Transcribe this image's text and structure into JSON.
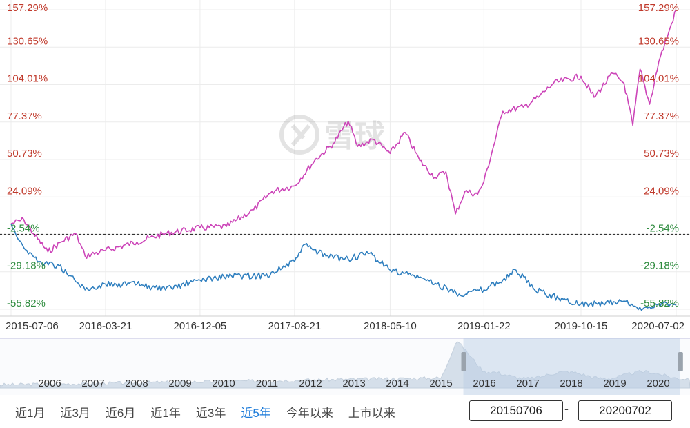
{
  "chart_data": {
    "type": "line",
    "y_ticks": [
      "157.29%",
      "130.65%",
      "104.01%",
      "77.37%",
      "50.73%",
      "24.09%",
      "-2.54%",
      "-29.18%",
      "-55.82%"
    ],
    "y_values": [
      157.29,
      130.65,
      104.01,
      77.37,
      50.73,
      24.09,
      -2.54,
      -29.18,
      -55.82
    ],
    "ylim": [
      -55.82,
      157.29
    ],
    "x_ticks": [
      "2015-07-06",
      "2016-03-21",
      "2016-12-05",
      "2017-08-21",
      "2018-05-10",
      "2019-01-22",
      "2019-10-15",
      "2020-07-02"
    ],
    "baseline": -2.54,
    "series": [
      {
        "color": "#cc44b8",
        "points": [
          [
            "2015-07-06",
            5
          ],
          [
            "2015-08-10",
            8
          ],
          [
            "2015-09-05",
            -2
          ],
          [
            "2015-10-15",
            -15
          ],
          [
            "2015-11-20",
            -8
          ],
          [
            "2015-12-30",
            -2
          ],
          [
            "2016-01-25",
            -18
          ],
          [
            "2016-03-21",
            -14
          ],
          [
            "2016-06-15",
            -8
          ],
          [
            "2016-09-01",
            -2
          ],
          [
            "2016-12-05",
            2
          ],
          [
            "2017-02-15",
            3
          ],
          [
            "2017-05-01",
            15
          ],
          [
            "2017-06-20",
            28
          ],
          [
            "2017-08-21",
            32
          ],
          [
            "2017-10-15",
            50
          ],
          [
            "2017-12-05",
            62
          ],
          [
            "2018-01-15",
            78
          ],
          [
            "2018-02-10",
            60
          ],
          [
            "2018-03-25",
            65
          ],
          [
            "2018-05-10",
            55
          ],
          [
            "2018-06-20",
            70
          ],
          [
            "2018-07-30",
            50
          ],
          [
            "2018-09-10",
            38
          ],
          [
            "2018-10-10",
            42
          ],
          [
            "2018-11-05",
            12
          ],
          [
            "2018-12-01",
            28
          ],
          [
            "2019-01-05",
            26
          ],
          [
            "2019-01-22",
            35
          ],
          [
            "2019-03-15",
            85
          ],
          [
            "2019-05-10",
            88
          ],
          [
            "2019-06-20",
            95
          ],
          [
            "2019-08-01",
            105
          ],
          [
            "2019-10-15",
            110
          ],
          [
            "2019-11-20",
            95
          ],
          [
            "2020-01-10",
            112
          ],
          [
            "2020-02-10",
            105
          ],
          [
            "2020-03-05",
            75
          ],
          [
            "2020-03-25",
            115
          ],
          [
            "2020-04-20",
            90
          ],
          [
            "2020-05-15",
            120
          ],
          [
            "2020-06-10",
            140
          ],
          [
            "2020-07-02",
            157.29
          ]
        ]
      },
      {
        "color": "#2f7fbf",
        "points": [
          [
            "2015-07-06",
            5
          ],
          [
            "2015-08-10",
            -12
          ],
          [
            "2015-09-20",
            -22
          ],
          [
            "2015-11-15",
            -25
          ],
          [
            "2016-01-25",
            -42
          ],
          [
            "2016-03-21",
            -38
          ],
          [
            "2016-06-15",
            -38
          ],
          [
            "2016-09-01",
            -42
          ],
          [
            "2016-12-05",
            -35
          ],
          [
            "2017-03-01",
            -32
          ],
          [
            "2017-06-01",
            -32
          ],
          [
            "2017-08-21",
            -22
          ],
          [
            "2017-09-15",
            -10
          ],
          [
            "2017-11-15",
            -18
          ],
          [
            "2018-01-15",
            -20
          ],
          [
            "2018-03-15",
            -16
          ],
          [
            "2018-05-10",
            -28
          ],
          [
            "2018-07-15",
            -32
          ],
          [
            "2018-09-15",
            -38
          ],
          [
            "2018-11-15",
            -45
          ],
          [
            "2019-01-22",
            -42
          ],
          [
            "2019-03-15",
            -35
          ],
          [
            "2019-04-20",
            -28
          ],
          [
            "2019-06-10",
            -42
          ],
          [
            "2019-08-15",
            -48
          ],
          [
            "2019-10-15",
            -52
          ],
          [
            "2019-12-15",
            -52
          ],
          [
            "2020-02-10",
            -50
          ],
          [
            "2020-03-20",
            -56
          ],
          [
            "2020-05-15",
            -52
          ],
          [
            "2020-07-02",
            -53
          ]
        ]
      }
    ],
    "navigator": {
      "x_ticks": [
        "2006",
        "2007",
        "2008",
        "2009",
        "2010",
        "2011",
        "2012",
        "2013",
        "2014",
        "2015",
        "2016",
        "2017",
        "2018",
        "2019",
        "2020"
      ],
      "selected_range": [
        "2015-07-06",
        "2020-07-02"
      ]
    },
    "watermark": "雪球"
  },
  "controls": {
    "range_buttons": [
      "近1月",
      "近3月",
      "近6月",
      "近1年",
      "近3年",
      "近5年",
      "今年以来",
      "上市以来"
    ],
    "active_index": 5,
    "start_date": "20150706",
    "end_date": "20200702",
    "separator": "-"
  },
  "colors": {
    "axis_up": "#c0392b",
    "axis_down": "#2e8b3e",
    "active": "#1a7ad9"
  }
}
